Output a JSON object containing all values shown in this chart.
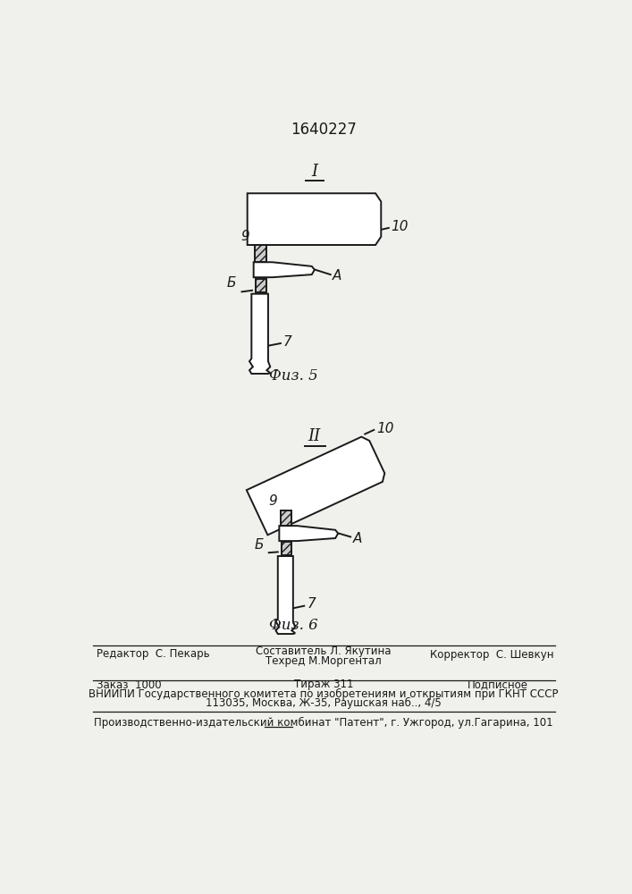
{
  "patent_number": "1640227",
  "fig5_caption": "Физ. 5",
  "fig6_caption": "Физ. 6",
  "footer_line1_left": "Редактор  С. Пекарь",
  "footer_line1_center1": "Составитель Л. Якутина",
  "footer_line1_center2": "Техред М.Моргентал",
  "footer_line1_right": "Корректор  С. Шевкун",
  "footer_line2_left": "Заказ  1000",
  "footer_line2_center": "Тираж 311",
  "footer_line2_right": "Подписное",
  "footer_line3": "ВНИИПИ Государственного комитета по изобретениям и открытиям при ГКНТ СССР",
  "footer_line4": "113035, Москва, Ж-35, Раушская наб.., 4/5",
  "footer_line5": "Производственно-издательский комбинат \"Патент\", г. Ужгород, ул.Гагарина, 101",
  "bg_color": "#f0f0ec",
  "line_color": "#1a1a1a"
}
